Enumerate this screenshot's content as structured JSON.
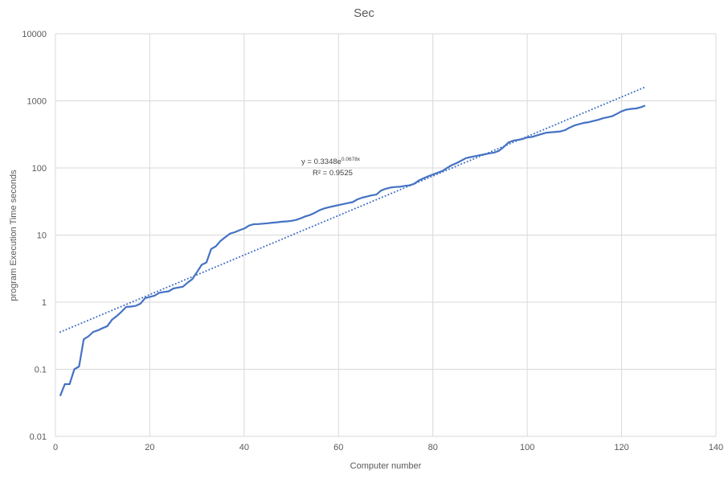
{
  "chart_data": {
    "type": "line",
    "title": "Sec",
    "xlabel": "Computer number",
    "ylabel": "program Execution Time seconds",
    "xlim": [
      0,
      140
    ],
    "ylim": [
      0.01,
      10000
    ],
    "yscale": "log",
    "x_ticks": [
      0,
      20,
      40,
      60,
      80,
      100,
      120,
      140
    ],
    "x_tick_labels": [
      "0",
      "20",
      "40",
      "60",
      "80",
      "100",
      "120",
      "140"
    ],
    "y_ticks": [
      0.01,
      0.1,
      1,
      10,
      100,
      1000,
      10000
    ],
    "y_tick_labels": [
      "0.01",
      "0.1",
      "1",
      "10",
      "100",
      "1000",
      "10000"
    ],
    "grid": true,
    "series": [
      {
        "color": "#4472C4",
        "points": [
          [
            1,
            0.04
          ],
          [
            2,
            0.06
          ],
          [
            3,
            0.06
          ],
          [
            4,
            0.1
          ],
          [
            5,
            0.11
          ],
          [
            6,
            0.28
          ],
          [
            7,
            0.31
          ],
          [
            8,
            0.36
          ],
          [
            9,
            0.38
          ],
          [
            10,
            0.41
          ],
          [
            11,
            0.44
          ],
          [
            12,
            0.55
          ],
          [
            13,
            0.62
          ],
          [
            14,
            0.72
          ],
          [
            15,
            0.85
          ],
          [
            16,
            0.86
          ],
          [
            17,
            0.88
          ],
          [
            18,
            0.95
          ],
          [
            19,
            1.15
          ],
          [
            20,
            1.2
          ],
          [
            21,
            1.25
          ],
          [
            22,
            1.38
          ],
          [
            23,
            1.42
          ],
          [
            24,
            1.45
          ],
          [
            25,
            1.6
          ],
          [
            26,
            1.65
          ],
          [
            27,
            1.7
          ],
          [
            28,
            1.95
          ],
          [
            29,
            2.2
          ],
          [
            30,
            2.8
          ],
          [
            31,
            3.6
          ],
          [
            32,
            3.9
          ],
          [
            33,
            6.2
          ],
          [
            34,
            6.8
          ],
          [
            35,
            8.2
          ],
          [
            36,
            9.3
          ],
          [
            37,
            10.5
          ],
          [
            38,
            11
          ],
          [
            39,
            11.8
          ],
          [
            40,
            12.5
          ],
          [
            41,
            13.8
          ],
          [
            42,
            14.5
          ],
          [
            43,
            14.6
          ],
          [
            44,
            14.8
          ],
          [
            45,
            15
          ],
          [
            46,
            15.3
          ],
          [
            47,
            15.5
          ],
          [
            48,
            15.8
          ],
          [
            49,
            16
          ],
          [
            50,
            16.3
          ],
          [
            51,
            16.8
          ],
          [
            52,
            17.8
          ],
          [
            53,
            19
          ],
          [
            54,
            20
          ],
          [
            55,
            21.5
          ],
          [
            56,
            23.5
          ],
          [
            57,
            25
          ],
          [
            58,
            26
          ],
          [
            59,
            27
          ],
          [
            60,
            28
          ],
          [
            61,
            29
          ],
          [
            62,
            30
          ],
          [
            63,
            31
          ],
          [
            64,
            34
          ],
          [
            65,
            36
          ],
          [
            66,
            37.5
          ],
          [
            67,
            39
          ],
          [
            68,
            40
          ],
          [
            69,
            46
          ],
          [
            70,
            49
          ],
          [
            71,
            51
          ],
          [
            72,
            52
          ],
          [
            73,
            52.5
          ],
          [
            74,
            54
          ],
          [
            75,
            55
          ],
          [
            76,
            58
          ],
          [
            77,
            65
          ],
          [
            78,
            70
          ],
          [
            79,
            75
          ],
          [
            80,
            80
          ],
          [
            81,
            85
          ],
          [
            82,
            90
          ],
          [
            83,
            100
          ],
          [
            84,
            110
          ],
          [
            85,
            118
          ],
          [
            86,
            128
          ],
          [
            87,
            140
          ],
          [
            88,
            145
          ],
          [
            89,
            150
          ],
          [
            90,
            155
          ],
          [
            91,
            160
          ],
          [
            92,
            165
          ],
          [
            93,
            170
          ],
          [
            94,
            180
          ],
          [
            95,
            205
          ],
          [
            96,
            240
          ],
          [
            97,
            255
          ],
          [
            98,
            262
          ],
          [
            99,
            270
          ],
          [
            100,
            285
          ],
          [
            101,
            290
          ],
          [
            102,
            305
          ],
          [
            103,
            320
          ],
          [
            104,
            335
          ],
          [
            105,
            340
          ],
          [
            106,
            345
          ],
          [
            107,
            350
          ],
          [
            108,
            365
          ],
          [
            109,
            400
          ],
          [
            110,
            430
          ],
          [
            111,
            450
          ],
          [
            112,
            470
          ],
          [
            113,
            480
          ],
          [
            114,
            500
          ],
          [
            115,
            520
          ],
          [
            116,
            550
          ],
          [
            117,
            570
          ],
          [
            118,
            590
          ],
          [
            119,
            640
          ],
          [
            120,
            700
          ],
          [
            121,
            740
          ],
          [
            122,
            760
          ],
          [
            123,
            770
          ],
          [
            124,
            800
          ],
          [
            125,
            850
          ]
        ]
      }
    ],
    "trendline": {
      "type": "exponential",
      "a": 0.3348,
      "b": 0.0678,
      "x_range": [
        1,
        125
      ],
      "color": "#4472C4",
      "style": "dotted",
      "equation_label_prefix": "y = 0.3348e",
      "equation_label_exponent": "0.0678x",
      "r2_label": "R² = 0.9525"
    }
  }
}
